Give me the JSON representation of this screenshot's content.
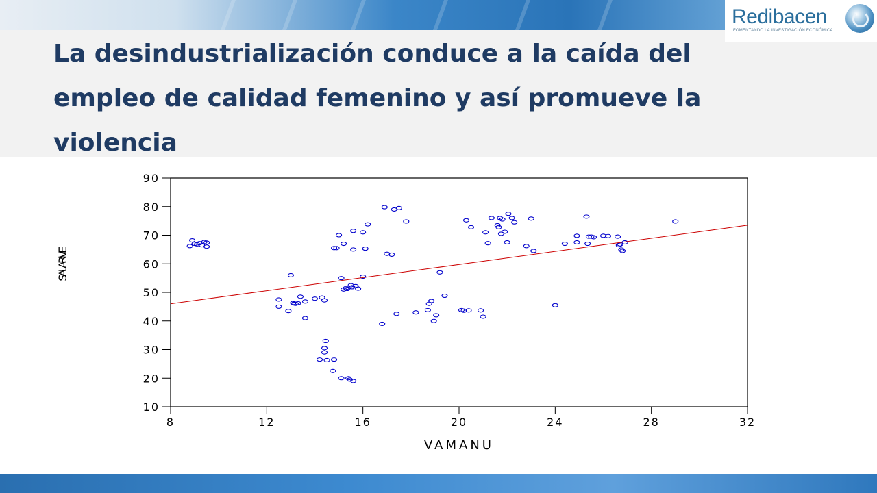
{
  "slide": {
    "title": "La desindustrialización conduce a la caída del empleo de calidad femenino y así promueve la violencia"
  },
  "logo": {
    "name": "Redibacen",
    "tagline": "FOMENTANDO LA INVESTIGACIÓN ECONÓMICA"
  },
  "colors": {
    "title": "#1f3b63",
    "points": "#0000cc",
    "fit_line": "#cc0000",
    "banner": "#2a74b8"
  },
  "chart_data": {
    "type": "scatter",
    "title": "",
    "xlabel": "VAMANU",
    "ylabel": "SALARIVIE",
    "xlim": [
      8,
      32
    ],
    "ylim": [
      10,
      90
    ],
    "xticks": [
      "8",
      "12",
      "16",
      "20",
      "24",
      "28",
      "32"
    ],
    "yticks": [
      "10",
      "20",
      "30",
      "40",
      "50",
      "60",
      "70",
      "80",
      "90"
    ],
    "grid": false,
    "fit_line": {
      "x": [
        8,
        32
      ],
      "y": [
        46,
        73.5
      ]
    },
    "points": [
      [
        8.8,
        66.2
      ],
      [
        8.9,
        68.2
      ],
      [
        9.0,
        67.0
      ],
      [
        9.1,
        66.8
      ],
      [
        9.2,
        67.2
      ],
      [
        9.3,
        66.5
      ],
      [
        9.4,
        67.6
      ],
      [
        9.5,
        67.4
      ],
      [
        9.5,
        66.0
      ],
      [
        12.5,
        47.5
      ],
      [
        12.5,
        45.0
      ],
      [
        12.9,
        43.5
      ],
      [
        13.0,
        56.0
      ],
      [
        13.1,
        46.3
      ],
      [
        13.15,
        46.1
      ],
      [
        13.2,
        46.0
      ],
      [
        13.3,
        46.2
      ],
      [
        13.4,
        48.5
      ],
      [
        13.6,
        46.8
      ],
      [
        13.6,
        41.0
      ],
      [
        14.0,
        47.8
      ],
      [
        14.2,
        26.5
      ],
      [
        14.3,
        48.2
      ],
      [
        14.4,
        47.2
      ],
      [
        14.4,
        30.5
      ],
      [
        14.4,
        29.0
      ],
      [
        14.45,
        33.0
      ],
      [
        14.5,
        26.3
      ],
      [
        14.8,
        26.5
      ],
      [
        14.75,
        22.5
      ],
      [
        14.8,
        65.5
      ],
      [
        14.9,
        65.5
      ],
      [
        15.0,
        70.0
      ],
      [
        15.1,
        55.0
      ],
      [
        15.1,
        20.0
      ],
      [
        15.2,
        67.0
      ],
      [
        15.2,
        51.0
      ],
      [
        15.3,
        51.5
      ],
      [
        15.35,
        51.2
      ],
      [
        15.4,
        20.0
      ],
      [
        15.45,
        19.5
      ],
      [
        15.5,
        52.5
      ],
      [
        15.55,
        51.8
      ],
      [
        15.6,
        19.0
      ],
      [
        15.6,
        71.5
      ],
      [
        15.6,
        65.0
      ],
      [
        15.7,
        52.2
      ],
      [
        15.8,
        51.3
      ],
      [
        16.0,
        55.5
      ],
      [
        16.0,
        71.0
      ],
      [
        16.1,
        65.3
      ],
      [
        16.2,
        73.8
      ],
      [
        16.8,
        39.0
      ],
      [
        16.9,
        79.8
      ],
      [
        17.0,
        63.5
      ],
      [
        17.2,
        63.2
      ],
      [
        17.3,
        79.0
      ],
      [
        17.4,
        42.5
      ],
      [
        17.5,
        79.5
      ],
      [
        17.8,
        74.8
      ],
      [
        18.2,
        43.0
      ],
      [
        18.7,
        43.8
      ],
      [
        18.75,
        46.0
      ],
      [
        18.85,
        47.0
      ],
      [
        18.95,
        40.0
      ],
      [
        19.05,
        42.0
      ],
      [
        19.2,
        57.0
      ],
      [
        19.4,
        48.8
      ],
      [
        20.1,
        43.8
      ],
      [
        20.2,
        43.6
      ],
      [
        20.3,
        75.2
      ],
      [
        20.4,
        43.7
      ],
      [
        20.5,
        72.8
      ],
      [
        20.9,
        43.7
      ],
      [
        21.0,
        41.5
      ],
      [
        21.1,
        71.0
      ],
      [
        21.2,
        67.2
      ],
      [
        21.35,
        76.0
      ],
      [
        21.6,
        73.5
      ],
      [
        21.65,
        72.8
      ],
      [
        21.7,
        76.0
      ],
      [
        21.75,
        70.5
      ],
      [
        21.8,
        75.5
      ],
      [
        21.9,
        71.2
      ],
      [
        22.0,
        67.5
      ],
      [
        22.05,
        77.5
      ],
      [
        22.2,
        76.0
      ],
      [
        22.3,
        74.5
      ],
      [
        22.8,
        66.2
      ],
      [
        23.0,
        75.8
      ],
      [
        23.1,
        64.5
      ],
      [
        24.0,
        45.5
      ],
      [
        24.4,
        67.0
      ],
      [
        24.9,
        69.8
      ],
      [
        24.9,
        67.5
      ],
      [
        25.3,
        76.5
      ],
      [
        25.35,
        67.0
      ],
      [
        25.4,
        69.5
      ],
      [
        25.5,
        69.5
      ],
      [
        25.6,
        69.3
      ],
      [
        26.0,
        69.8
      ],
      [
        26.2,
        69.7
      ],
      [
        26.6,
        69.5
      ],
      [
        26.65,
        66.5
      ],
      [
        26.7,
        66.8
      ],
      [
        26.75,
        65.0
      ],
      [
        26.8,
        64.5
      ],
      [
        26.9,
        67.5
      ],
      [
        29.0,
        74.8
      ]
    ]
  }
}
